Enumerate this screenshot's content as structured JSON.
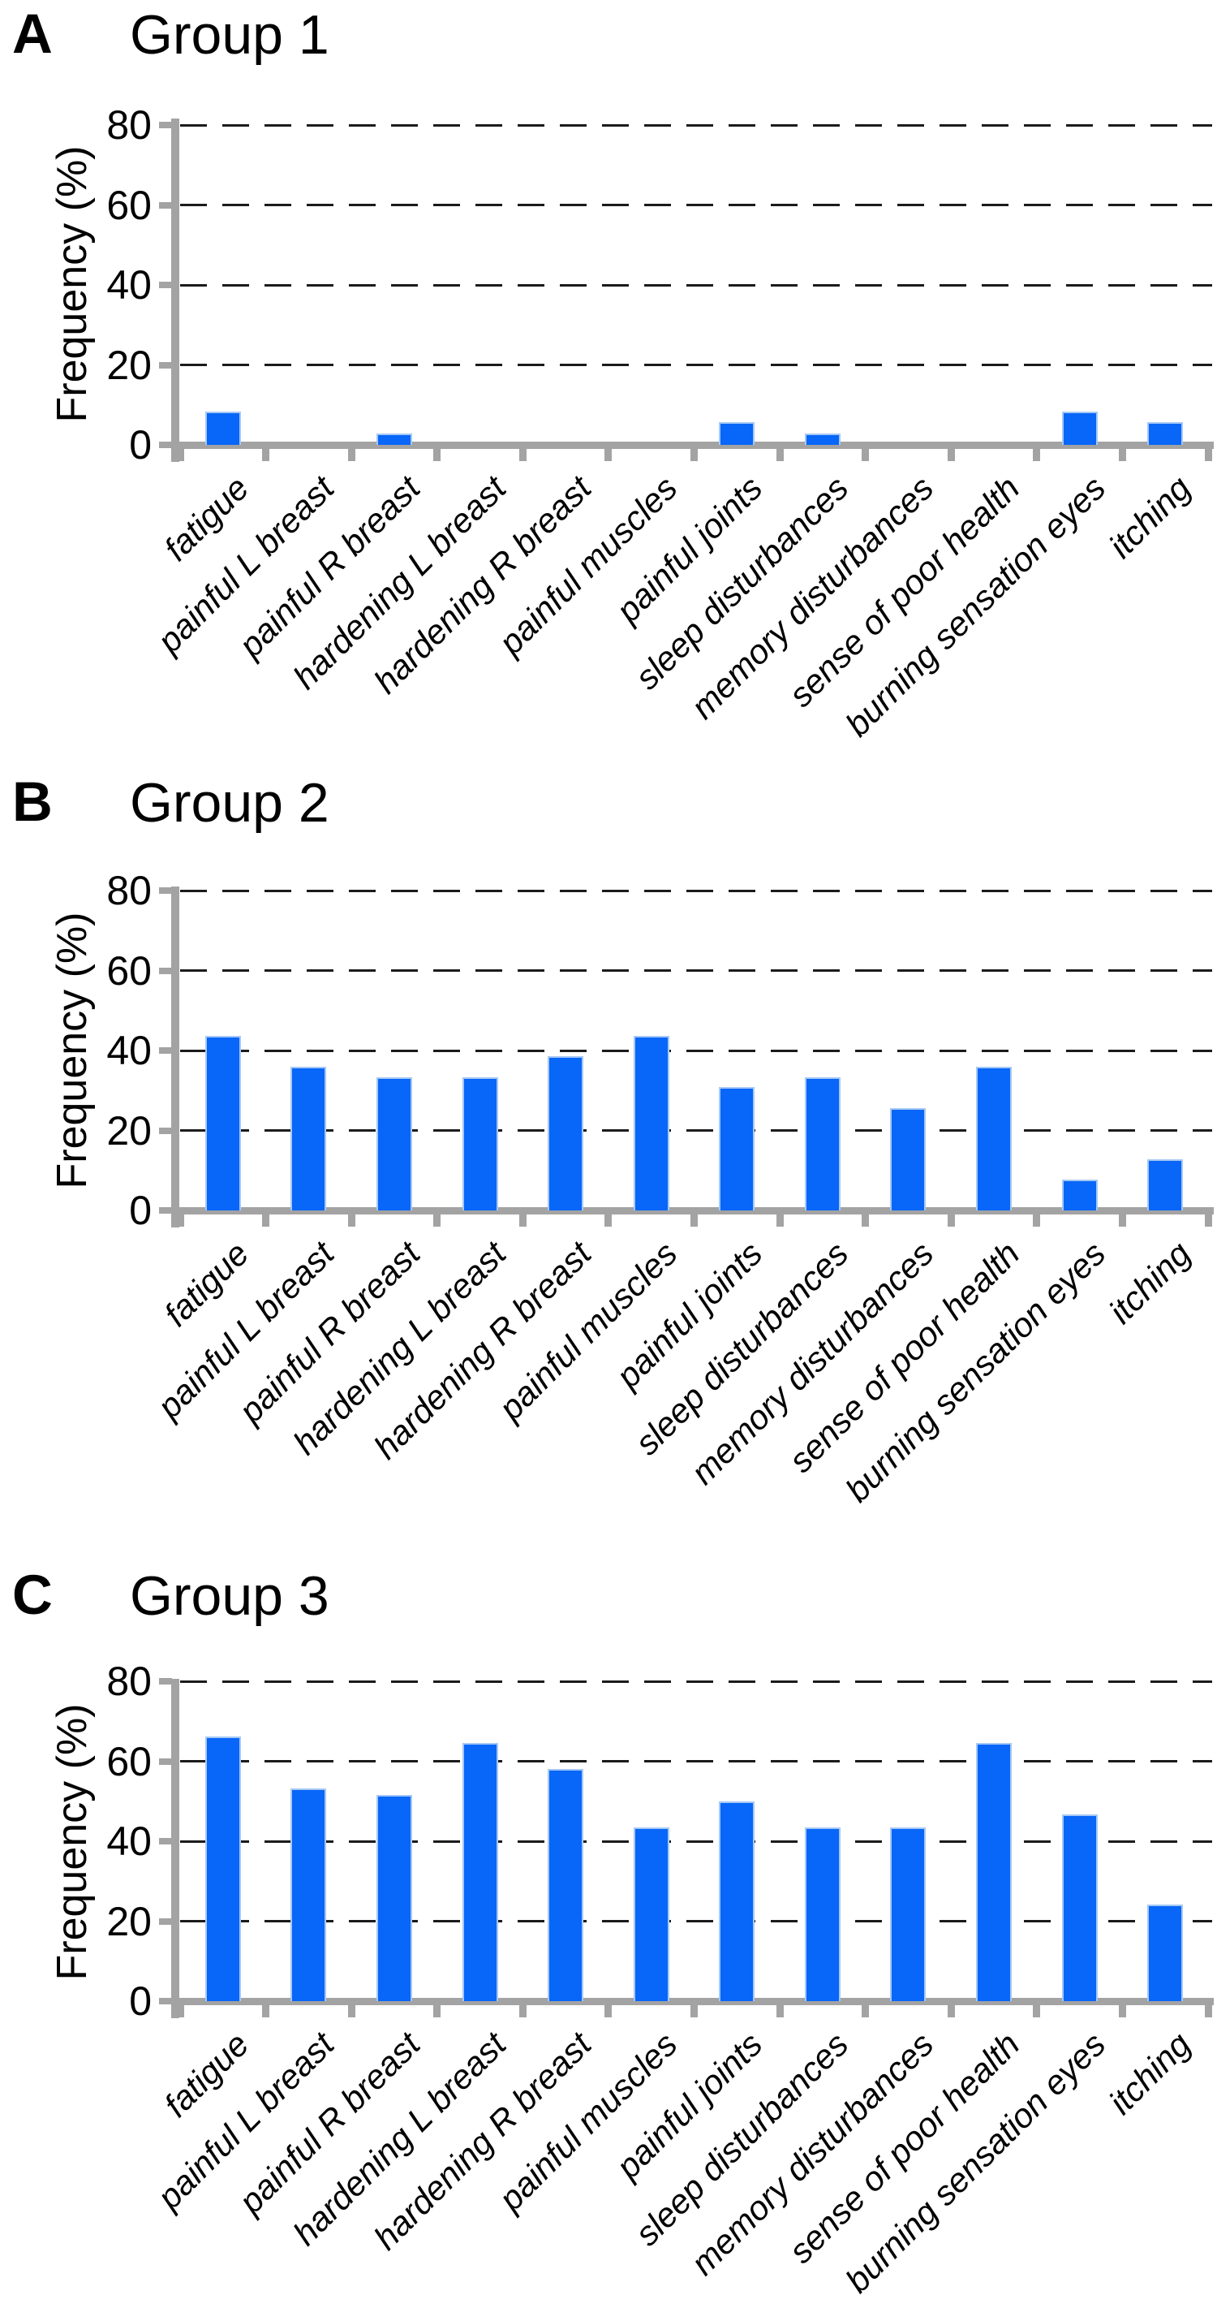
{
  "figure_title": "",
  "colors": {
    "bar_fill": "#0866f8",
    "bar_border": "#a6c8f4",
    "axis_gray": "#a3a3a3",
    "gridline": "#1b1b1b",
    "text": "#000000",
    "background": "#ffffff"
  },
  "chart_data": [
    {
      "type": "bar",
      "panel_label": "A",
      "title": "Group 1",
      "ylabel": "Frequency (%)",
      "ylim": [
        0,
        80
      ],
      "yticks": [
        0,
        20,
        40,
        60,
        80
      ],
      "grid": "horizontal dashed",
      "legend": "none",
      "categories": [
        "fatigue",
        "painful L breast",
        "painful R breast",
        "hardening L breast",
        "hardening R breast",
        "painful muscles",
        "painful joints",
        "sleep disturbances",
        "memory disturbances",
        "sense of poor health",
        "burning sensation eyes",
        "itching"
      ],
      "values": [
        8.3,
        0,
        2.8,
        0,
        0,
        0,
        5.6,
        2.8,
        0,
        0,
        8.3,
        5.6
      ]
    },
    {
      "type": "bar",
      "panel_label": "B",
      "title": "Group 2",
      "ylabel": "Frequency (%)",
      "ylim": [
        0,
        80
      ],
      "yticks": [
        0,
        20,
        40,
        60,
        80
      ],
      "grid": "horizontal dashed",
      "legend": "none",
      "categories": [
        "fatigue",
        "painful L breast",
        "painful R breast",
        "hardening L breast",
        "hardening R breast",
        "painful muscles",
        "painful joints",
        "sleep disturbances",
        "memory disturbances",
        "sense of poor health",
        "burning sensation eyes",
        "itching"
      ],
      "values": [
        43.6,
        35.9,
        33.3,
        33.3,
        38.5,
        43.6,
        30.8,
        33.3,
        25.6,
        35.9,
        7.7,
        12.8
      ]
    },
    {
      "type": "bar",
      "panel_label": "C",
      "title": "Group 3",
      "ylabel": "Frequency (%)",
      "ylim": [
        0,
        80
      ],
      "yticks": [
        0,
        20,
        40,
        60,
        80
      ],
      "grid": "horizontal dashed",
      "legend": "none",
      "categories": [
        "fatigue",
        "painful L breast",
        "painful R breast",
        "hardening L breast",
        "hardening R breast",
        "painful muscles",
        "painful joints",
        "sleep disturbances",
        "memory disturbances",
        "sense of poor health",
        "burning sensation eyes",
        "itching"
      ],
      "values": [
        66.1,
        53.2,
        51.6,
        64.5,
        58.1,
        43.5,
        50.0,
        43.5,
        43.5,
        64.5,
        46.8,
        24.2
      ]
    }
  ]
}
